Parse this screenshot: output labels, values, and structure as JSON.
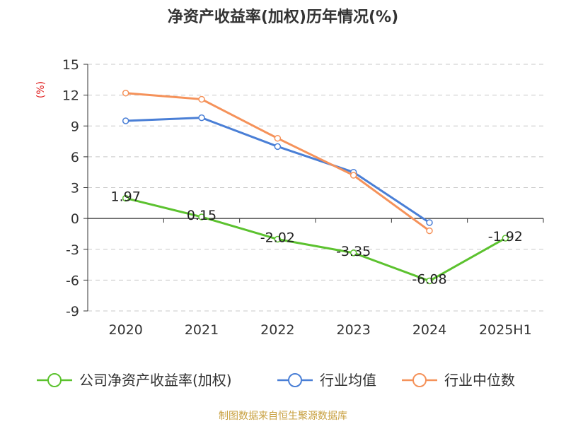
{
  "title": "净资产收益率(加权)历年情况(%)",
  "source": "制图数据来自恒生聚源数据库",
  "chart_data": {
    "type": "line",
    "title": "净资产收益率(加权)历年情况(%)",
    "ylabel": "(%)",
    "xlabel": "",
    "categories": [
      "2020",
      "2021",
      "2022",
      "2023",
      "2024",
      "2025H1"
    ],
    "yticks": [
      -9,
      -6,
      -3,
      0,
      3,
      6,
      9,
      12,
      15
    ],
    "ylim": [
      -9,
      15
    ],
    "grid": "horizontal-dashed",
    "legend_position": "bottom",
    "series": [
      {
        "name": "公司净资产收益率(加权)",
        "color": "#5cc22f",
        "values": [
          1.97,
          0.15,
          -2.02,
          -3.35,
          -6.08,
          -1.92
        ],
        "labels": [
          "1.97",
          "0.15",
          "-2.02",
          "-3.35",
          "-6.08",
          "-1.92"
        ]
      },
      {
        "name": "行业均值",
        "color": "#4a7fd6",
        "values": [
          9.5,
          9.8,
          7.0,
          4.5,
          -0.4,
          null
        ]
      },
      {
        "name": "行业中位数",
        "color": "#f5925a",
        "values": [
          12.2,
          11.6,
          7.8,
          4.2,
          -1.2,
          null
        ]
      }
    ]
  }
}
